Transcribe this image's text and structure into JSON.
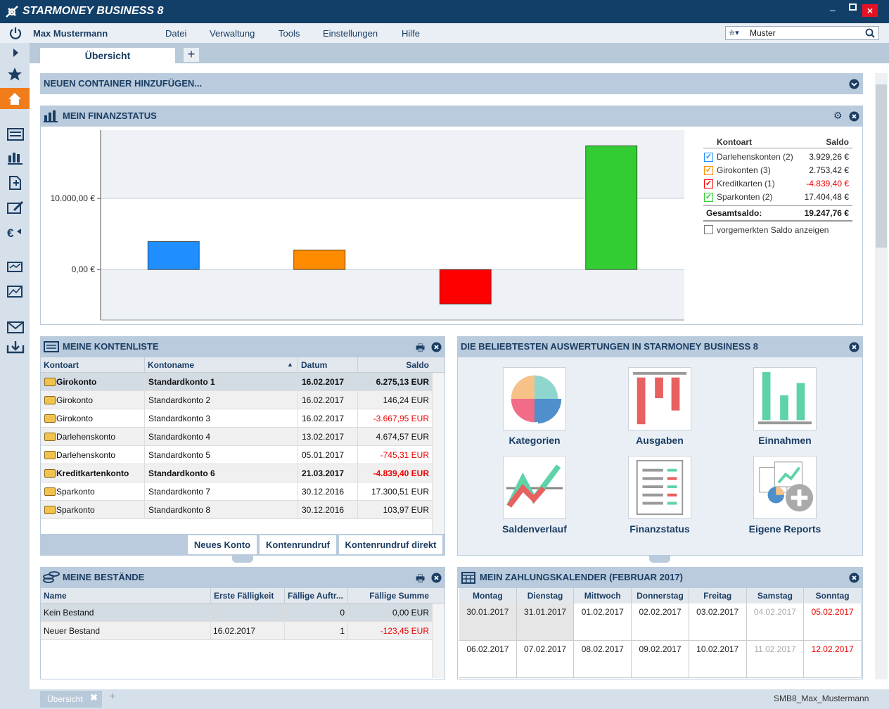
{
  "app": {
    "title": "STARMONEY BUSINESS 8",
    "user": "Max Mustermann",
    "menu": [
      "Datei",
      "Verwaltung",
      "Tools",
      "Einstellungen",
      "Hilfe"
    ],
    "search": "Muster"
  },
  "tabs": [
    "Übersicht"
  ],
  "add_container": "NEUEN CONTAINER HINZUFÜGEN...",
  "finanzstatus": {
    "title": "MEIN FINANZSTATUS",
    "legend_header": [
      "Kontoart",
      "Saldo"
    ],
    "total_label": "Gesamtsaldo:",
    "total": "19.247,76 €",
    "pending_checkbox": "vorgemerkten Saldo anzeigen"
  },
  "chart_data": {
    "type": "bar",
    "categories": [
      "Darlehenskonten (2)",
      "Girokonten (3)",
      "Kreditkarten (1)",
      "Sparkonten (2)"
    ],
    "values": [
      3929.26,
      2753.42,
      -4839.4,
      17404.48
    ],
    "value_labels": [
      "3.929,26 €",
      "2.753,42 €",
      "-4.839,40 €",
      "17.404,48 €"
    ],
    "colors": [
      "#1f8fff",
      "#ff8c00",
      "#ff0000",
      "#33cc33"
    ],
    "ylim": [
      -7100,
      19600
    ],
    "yticks": [
      {
        "value": 0,
        "label": "0,00 €"
      },
      {
        "value": 10000,
        "label": "10.000,00 €"
      }
    ],
    "grid": true
  },
  "kontenliste": {
    "title": "MEINE KONTENLISTE",
    "columns": [
      "Kontoart",
      "Kontoname",
      "Datum",
      "Saldo"
    ],
    "rows": [
      [
        "Girokonto",
        "Standardkonto 1",
        "16.02.2017",
        "6.275,13 EUR"
      ],
      [
        "Girokonto",
        "Standardkonto 2",
        "16.02.2017",
        "146,24 EUR"
      ],
      [
        "Girokonto",
        "Standardkonto 3",
        "16.02.2017",
        "-3.667,95 EUR"
      ],
      [
        "Darlehenskonto",
        "Standardkonto 4",
        "13.02.2017",
        "4.674,57 EUR"
      ],
      [
        "Darlehenskonto",
        "Standardkonto 5",
        "05.01.2017",
        "-745,31 EUR"
      ],
      [
        "Kreditkartenkonto",
        "Standardkonto 6",
        "21.03.2017",
        "-4.839,40 EUR"
      ],
      [
        "Sparkonto",
        "Standardkonto 7",
        "30.12.2016",
        "17.300,51 EUR"
      ],
      [
        "Sparkonto",
        "Standardkonto 8",
        "30.12.2016",
        "103,97 EUR"
      ]
    ],
    "bold_rows": [
      0,
      5
    ],
    "buttons": [
      "Neues Konto",
      "Kontenrundruf",
      "Kontenrundruf direkt"
    ]
  },
  "auswertungen": {
    "title": "DIE BELIEBTESTEN AUSWERTUNGEN IN STARMONEY BUSINESS 8",
    "tiles": [
      "Kategorien",
      "Ausgaben",
      "Einnahmen",
      "Saldenverlauf",
      "Finanzstatus",
      "Eigene Reports"
    ]
  },
  "bestaende": {
    "title": "MEINE BESTÄNDE",
    "columns": [
      "Name",
      "Erste Fälligkeit",
      "Fällige Auftr...",
      "Fällige Summe"
    ],
    "rows": [
      [
        "Kein Bestand",
        null,
        "0",
        "0,00 EUR"
      ],
      [
        "Neuer Bestand",
        "16.02.2017",
        "1",
        "-123,45 EUR"
      ]
    ]
  },
  "kalender": {
    "title": "MEIN ZAHLUNGSKALENDER (FEBRUAR 2017)",
    "weekdays": [
      "Montag",
      "Dienstag",
      "Mittwoch",
      "Donnerstag",
      "Freitag",
      "Samstag",
      "Sonntag"
    ],
    "weeks": [
      [
        "30.01.2017",
        "31.01.2017",
        "01.02.2017",
        "02.02.2017",
        "03.02.2017",
        "04.02.2017",
        "05.02.2017"
      ],
      [
        "06.02.2017",
        "07.02.2017",
        "08.02.2017",
        "09.02.2017",
        "10.02.2017",
        "11.02.2017",
        "12.02.2017"
      ]
    ]
  },
  "statusbar": {
    "tab": "Übersicht",
    "profile": "SMB8_Max_Mustermann"
  }
}
